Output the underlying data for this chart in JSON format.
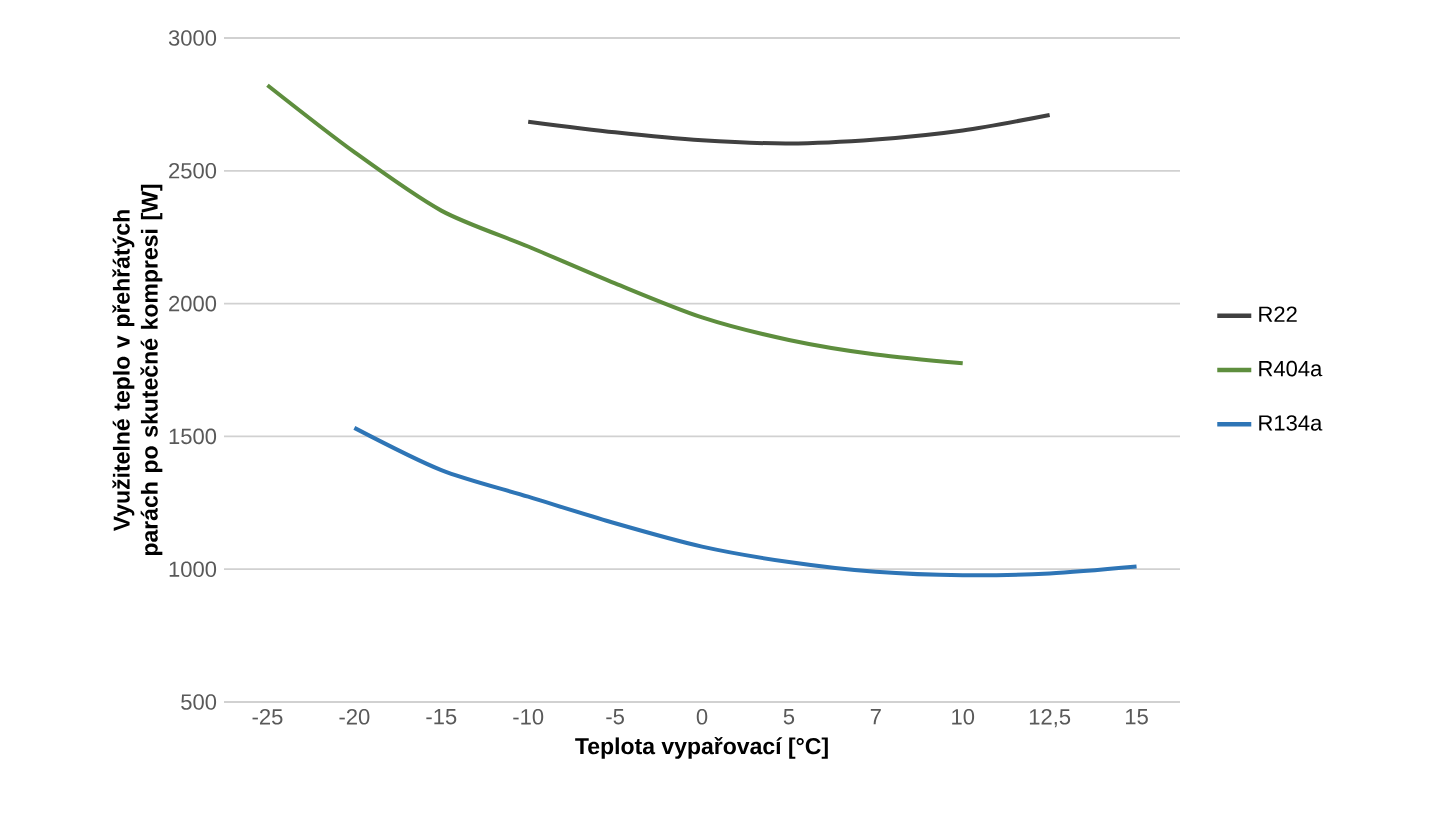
{
  "chart_data": {
    "type": "line",
    "xlabel": "Teplota vypařovací [°C]",
    "ylabel": "Využitelné teplo v přehřátých parách po skutečné kompresi [W]",
    "categories": [
      "-25",
      "-20",
      "-15",
      "-10",
      "-5",
      "0",
      "5",
      "7",
      "10",
      "12,5",
      "15"
    ],
    "series": [
      {
        "name": "R22",
        "color": "#404040",
        "values": [
          null,
          null,
          null,
          2685,
          2645,
          2615,
          2603,
          2618,
          2652,
          2710,
          null
        ]
      },
      {
        "name": "R404a",
        "color": "#5e8e3e",
        "values": [
          2822,
          2570,
          2350,
          2215,
          2076,
          1948,
          1863,
          1808,
          1775,
          null,
          null
        ]
      },
      {
        "name": "R134a",
        "color": "#2e75b6",
        "values": [
          null,
          1532,
          1373,
          1273,
          1173,
          1085,
          1027,
          990,
          977,
          984,
          1010
        ]
      }
    ],
    "ylim": [
      500,
      3000
    ],
    "yticks": [
      500,
      1000,
      1500,
      2000,
      2500,
      3000
    ],
    "grid": "y",
    "legend": "right",
    "marker": "none",
    "line_style": "solid"
  }
}
